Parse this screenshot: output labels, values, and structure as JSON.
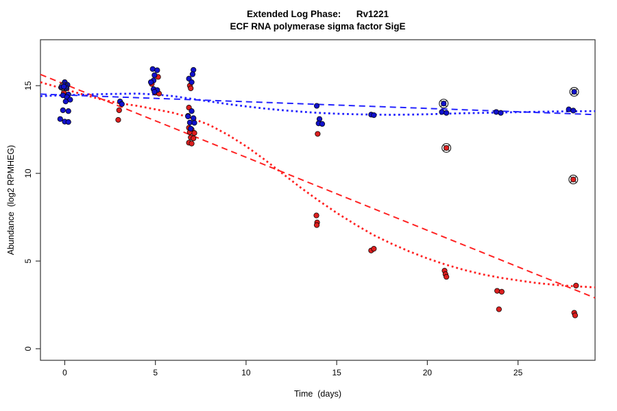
{
  "chart_data": {
    "type": "scatter",
    "title": "Extended Log Phase:      Rv1221",
    "subtitle": "ECF RNA polymerase sigma factor SigE",
    "xlabel": "Time  (days)",
    "ylabel": "Abundance  (log2 RPMHEG)",
    "xlim": [
      -1.34,
      29.25
    ],
    "ylim": [
      -0.66,
      17.62
    ],
    "x_ticks": [
      0,
      5,
      10,
      15,
      20,
      25
    ],
    "y_ticks": [
      0,
      5,
      10,
      15
    ],
    "grid": false,
    "legend": false,
    "colors": {
      "blue_points": "#1111cc",
      "red_points": "#dd1f1f",
      "blue_line": "#2222ff",
      "red_line": "#ff2222",
      "outlier_ring": "#222222",
      "axis": "#333333"
    },
    "series": [
      {
        "name": "red-samples",
        "marker": "dot",
        "color": "#dd1f1f",
        "points": [
          [
            0.05,
            14.9
          ],
          [
            -0.05,
            14.6
          ],
          [
            0.1,
            14.4
          ],
          [
            3.0,
            13.6
          ],
          [
            2.95,
            13.05
          ],
          [
            5.15,
            15.5
          ],
          [
            4.8,
            15.1
          ],
          [
            5.0,
            14.6
          ],
          [
            5.2,
            14.55
          ],
          [
            6.9,
            15.0
          ],
          [
            6.95,
            14.85
          ],
          [
            6.85,
            13.75
          ],
          [
            6.8,
            13.28
          ],
          [
            6.85,
            12.6
          ],
          [
            7.0,
            12.5
          ],
          [
            6.9,
            12.35
          ],
          [
            7.15,
            12.3
          ],
          [
            6.95,
            12.05
          ],
          [
            7.1,
            12.0
          ],
          [
            6.85,
            11.75
          ],
          [
            7.0,
            11.7
          ],
          [
            13.95,
            12.25
          ],
          [
            13.88,
            7.6
          ],
          [
            13.92,
            7.2
          ],
          [
            13.9,
            7.05
          ],
          [
            16.9,
            5.6
          ],
          [
            17.05,
            5.7
          ],
          [
            20.95,
            4.45
          ],
          [
            21.0,
            4.25
          ],
          [
            21.05,
            4.1
          ],
          [
            23.85,
            3.3
          ],
          [
            24.1,
            3.25
          ],
          [
            23.95,
            2.25
          ],
          [
            28.2,
            3.6
          ],
          [
            28.1,
            2.05
          ],
          [
            28.15,
            1.9
          ]
        ]
      },
      {
        "name": "blue-samples",
        "marker": "dot",
        "color": "#1111cc",
        "points": [
          [
            0,
            15.2
          ],
          [
            0.15,
            15.05
          ],
          [
            -0.2,
            14.9
          ],
          [
            0.1,
            14.85
          ],
          [
            0.2,
            14.5
          ],
          [
            -0.1,
            14.45
          ],
          [
            0.12,
            14.35
          ],
          [
            0.3,
            14.2
          ],
          [
            0.05,
            14.1
          ],
          [
            -0.1,
            13.6
          ],
          [
            0.2,
            13.55
          ],
          [
            -0.25,
            13.1
          ],
          [
            0,
            12.95
          ],
          [
            0.2,
            12.93
          ],
          [
            3.05,
            14.1
          ],
          [
            3.15,
            13.95
          ],
          [
            4.85,
            15.95
          ],
          [
            5.1,
            15.88
          ],
          [
            4.95,
            15.6
          ],
          [
            4.9,
            15.3
          ],
          [
            4.75,
            15.2
          ],
          [
            4.9,
            14.8
          ],
          [
            5.1,
            14.75
          ],
          [
            4.95,
            14.65
          ],
          [
            7.1,
            15.9
          ],
          [
            7.05,
            15.65
          ],
          [
            6.85,
            15.4
          ],
          [
            7.0,
            15.2
          ],
          [
            7.0,
            13.55
          ],
          [
            6.8,
            13.25
          ],
          [
            7.1,
            13.15
          ],
          [
            6.9,
            12.9
          ],
          [
            7.15,
            12.88
          ],
          [
            6.95,
            12.55
          ],
          [
            13.9,
            13.85
          ],
          [
            14.05,
            13.1
          ],
          [
            14.0,
            12.85
          ],
          [
            14.2,
            12.82
          ],
          [
            16.9,
            13.35
          ],
          [
            17.05,
            13.32
          ],
          [
            20.8,
            13.5
          ],
          [
            21.05,
            13.45
          ],
          [
            23.8,
            13.5
          ],
          [
            24.05,
            13.45
          ],
          [
            27.8,
            13.65
          ],
          [
            28.05,
            13.58
          ]
        ]
      },
      {
        "name": "red-flagged-outliers",
        "marker": "circled-dot",
        "color": "#dd1f1f",
        "points": [
          [
            21.05,
            11.45
          ],
          [
            28.05,
            9.65
          ]
        ]
      },
      {
        "name": "blue-flagged-outliers",
        "marker": "circled-dot",
        "color": "#1111cc",
        "points": [
          [
            -0.05,
            14.95
          ],
          [
            20.9,
            13.98
          ],
          [
            28.1,
            14.65
          ]
        ]
      }
    ],
    "trend_lines": [
      {
        "name": "red-linear-fit",
        "style": "dashed",
        "color": "#ff2222",
        "points": [
          [
            -1.34,
            15.64
          ],
          [
            29.25,
            2.9
          ]
        ]
      },
      {
        "name": "red-loess-fit",
        "style": "dotted",
        "color": "#ff2222",
        "points": [
          [
            -1.34,
            15.2
          ],
          [
            0,
            14.8
          ],
          [
            1,
            14.5
          ],
          [
            2,
            14.22
          ],
          [
            3,
            14.0
          ],
          [
            4,
            13.85
          ],
          [
            5,
            13.65
          ],
          [
            6,
            13.45
          ],
          [
            7,
            13.15
          ],
          [
            8,
            12.75
          ],
          [
            9,
            12.2
          ],
          [
            10,
            11.55
          ],
          [
            11,
            10.8
          ],
          [
            12,
            10.0
          ],
          [
            13,
            9.2
          ],
          [
            14,
            8.45
          ],
          [
            15,
            7.75
          ],
          [
            16,
            7.1
          ],
          [
            17,
            6.5
          ],
          [
            18,
            6.0
          ],
          [
            19,
            5.55
          ],
          [
            20,
            5.15
          ],
          [
            21,
            4.8
          ],
          [
            22,
            4.5
          ],
          [
            23,
            4.25
          ],
          [
            24,
            4.05
          ],
          [
            25,
            3.9
          ],
          [
            26,
            3.75
          ],
          [
            27,
            3.65
          ],
          [
            28,
            3.57
          ],
          [
            29.25,
            3.5
          ]
        ]
      },
      {
        "name": "blue-linear-fit",
        "style": "dashed",
        "color": "#2222ff",
        "points": [
          [
            -1.34,
            14.52
          ],
          [
            29.25,
            13.35
          ]
        ]
      },
      {
        "name": "blue-loess-fit",
        "style": "dotted",
        "color": "#2222ff",
        "points": [
          [
            -1.34,
            14.4
          ],
          [
            0,
            14.46
          ],
          [
            2,
            14.52
          ],
          [
            4,
            14.55
          ],
          [
            5,
            14.5
          ],
          [
            6,
            14.4
          ],
          [
            7,
            14.25
          ],
          [
            8,
            14.1
          ],
          [
            9,
            13.95
          ],
          [
            10,
            13.82
          ],
          [
            11,
            13.7
          ],
          [
            12,
            13.6
          ],
          [
            13,
            13.52
          ],
          [
            14,
            13.45
          ],
          [
            15,
            13.4
          ],
          [
            16,
            13.37
          ],
          [
            17,
            13.35
          ],
          [
            18,
            13.34
          ],
          [
            19,
            13.35
          ],
          [
            20,
            13.37
          ],
          [
            21,
            13.4
          ],
          [
            22,
            13.43
          ],
          [
            23,
            13.45
          ],
          [
            24,
            13.47
          ],
          [
            25,
            13.49
          ],
          [
            26,
            13.51
          ],
          [
            27,
            13.53
          ],
          [
            28,
            13.54
          ],
          [
            29.25,
            13.55
          ]
        ]
      }
    ]
  }
}
